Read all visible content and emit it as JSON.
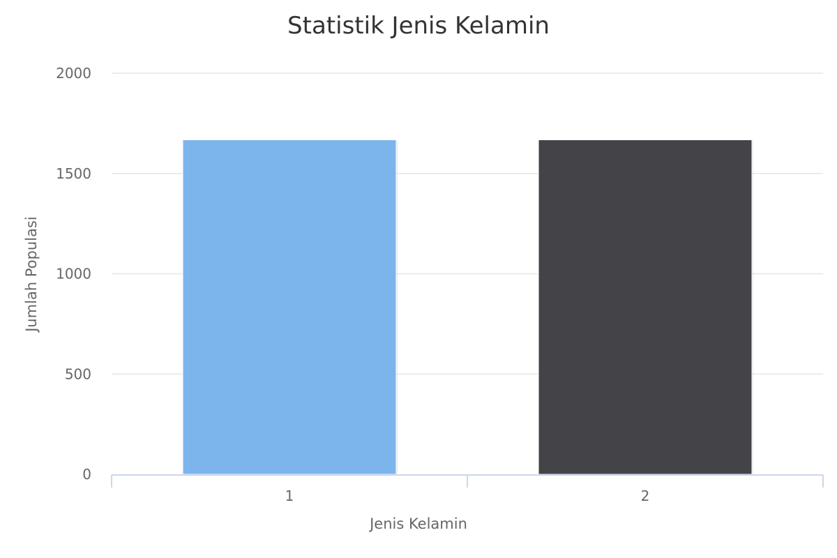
{
  "chart_data": {
    "type": "bar",
    "title": "Statistik Jenis Kelamin",
    "xlabel": "Jenis Kelamin",
    "ylabel": "Jumlah Populasi",
    "categories": [
      "1",
      "2"
    ],
    "values": [
      1668,
      1668
    ],
    "colors": [
      "#7cb5ec",
      "#434348"
    ],
    "ylim": [
      0,
      2000
    ],
    "yticks": [
      0,
      500,
      1000,
      1500,
      2000
    ],
    "grid": true,
    "legend": "none"
  }
}
